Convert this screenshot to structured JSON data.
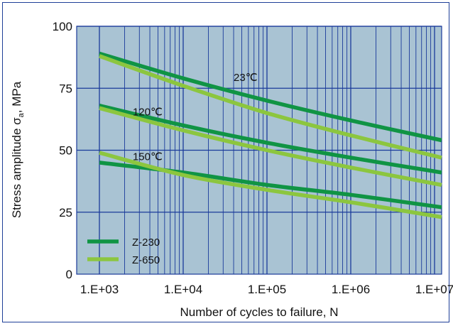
{
  "chart_data": {
    "type": "line",
    "xlabel": "Number of cycles to failure, N",
    "ylabel_main": "Stress amplitude σ",
    "ylabel_sub": "a",
    "ylabel_tail": ", MPa",
    "xscale": "log",
    "xlim": [
      1000,
      20000000
    ],
    "ylim": [
      0,
      100
    ],
    "x_ticks": [
      1000,
      10000,
      100000,
      1000000,
      10000000
    ],
    "x_tick_labels": [
      "1.E+03",
      "1.E+04",
      "1.E+05",
      "1.E+06",
      "1.E+07"
    ],
    "y_ticks": [
      0,
      25,
      50,
      75,
      100
    ],
    "y_tick_labels": [
      "0",
      "25",
      "50",
      "75",
      "100"
    ],
    "grid": true,
    "legend_position": "bottom-left",
    "legend": [
      {
        "name": "Z-230",
        "color": "#109444"
      },
      {
        "name": "Z-650",
        "color": "#8cc63f"
      }
    ],
    "annotations": [
      {
        "text": "23℃",
        "x": 40000,
        "y": 78
      },
      {
        "text": "120℃",
        "x": 2500,
        "y": 64
      },
      {
        "text": "150℃",
        "x": 2500,
        "y": 46
      }
    ],
    "series": [
      {
        "material": "Z-230",
        "temperature": "23℃",
        "color": "#109444",
        "x": [
          1000,
          10000,
          100000,
          1000000,
          20000000
        ],
        "y": [
          89,
          79,
          70,
          62,
          54
        ]
      },
      {
        "material": "Z-650",
        "temperature": "23℃",
        "color": "#8cc63f",
        "x": [
          1000,
          10000,
          100000,
          1000000,
          20000000
        ],
        "y": [
          88,
          76,
          65,
          56,
          47
        ]
      },
      {
        "material": "Z-230",
        "temperature": "120℃",
        "color": "#109444",
        "x": [
          1000,
          10000,
          100000,
          1000000,
          20000000
        ],
        "y": [
          68,
          60,
          53,
          47,
          41
        ]
      },
      {
        "material": "Z-650",
        "temperature": "120℃",
        "color": "#8cc63f",
        "x": [
          1000,
          10000,
          100000,
          1000000,
          20000000
        ],
        "y": [
          67,
          58,
          50,
          43,
          36
        ]
      },
      {
        "material": "Z-230",
        "temperature": "150℃",
        "color": "#109444",
        "x": [
          1000,
          10000,
          100000,
          1000000,
          20000000
        ],
        "y": [
          45,
          41,
          36,
          32,
          27
        ]
      },
      {
        "material": "Z-650",
        "temperature": "150℃",
        "color": "#8cc63f",
        "x": [
          1000,
          10000,
          100000,
          1000000,
          20000000
        ],
        "y": [
          49,
          40,
          34,
          29,
          23
        ]
      }
    ]
  }
}
